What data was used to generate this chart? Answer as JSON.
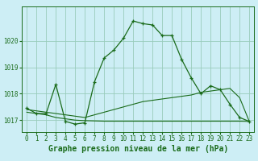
{
  "title": "Graphe pression niveau de la mer (hPa)",
  "bg_color": "#cdeef5",
  "grid_color": "#99ccbb",
  "line_color": "#1a6b1a",
  "xlim": [
    -0.5,
    23.5
  ],
  "ylim": [
    1016.55,
    1021.3
  ],
  "yticks": [
    1017,
    1018,
    1019,
    1020
  ],
  "xticks": [
    0,
    1,
    2,
    3,
    4,
    5,
    6,
    7,
    8,
    9,
    10,
    11,
    12,
    13,
    14,
    15,
    16,
    17,
    18,
    19,
    20,
    21,
    22,
    23
  ],
  "series1_x": [
    0,
    1,
    2,
    3,
    4,
    5,
    6,
    7,
    8,
    9,
    10,
    11,
    12,
    13,
    14,
    15,
    16,
    17,
    18,
    19,
    20,
    21,
    22,
    23
  ],
  "series1_y": [
    1017.45,
    1017.25,
    1017.25,
    1018.35,
    1016.95,
    1016.85,
    1016.9,
    1018.45,
    1019.35,
    1019.65,
    1020.1,
    1020.75,
    1020.65,
    1020.6,
    1020.2,
    1020.2,
    1019.3,
    1018.6,
    1018.0,
    1018.3,
    1018.15,
    1017.6,
    1017.1,
    1016.95
  ],
  "series2_x": [
    0,
    1,
    2,
    3,
    4,
    5,
    6,
    7,
    8,
    9,
    10,
    11,
    12,
    13,
    14,
    15,
    16,
    17,
    18,
    19,
    20,
    21,
    22,
    23
  ],
  "series2_y": [
    1017.4,
    1017.35,
    1017.3,
    1017.25,
    1017.2,
    1017.15,
    1017.1,
    1017.2,
    1017.3,
    1017.4,
    1017.5,
    1017.6,
    1017.7,
    1017.75,
    1017.8,
    1017.85,
    1017.9,
    1017.95,
    1018.05,
    1018.1,
    1018.15,
    1018.2,
    1017.85,
    1016.95
  ],
  "series3_x": [
    0,
    1,
    2,
    3,
    4,
    5,
    6,
    7,
    8,
    9,
    10,
    11,
    12,
    13,
    14,
    15,
    16,
    17,
    18,
    19,
    20,
    21,
    22,
    23
  ],
  "series3_y": [
    1017.3,
    1017.25,
    1017.2,
    1017.1,
    1017.05,
    1017.0,
    1016.98,
    1016.97,
    1016.96,
    1016.96,
    1016.96,
    1016.96,
    1016.96,
    1016.96,
    1016.96,
    1016.96,
    1016.96,
    1016.96,
    1016.96,
    1016.96,
    1016.96,
    1016.96,
    1016.96,
    1016.95
  ],
  "title_fontsize": 7,
  "tick_fontsize": 5.5
}
